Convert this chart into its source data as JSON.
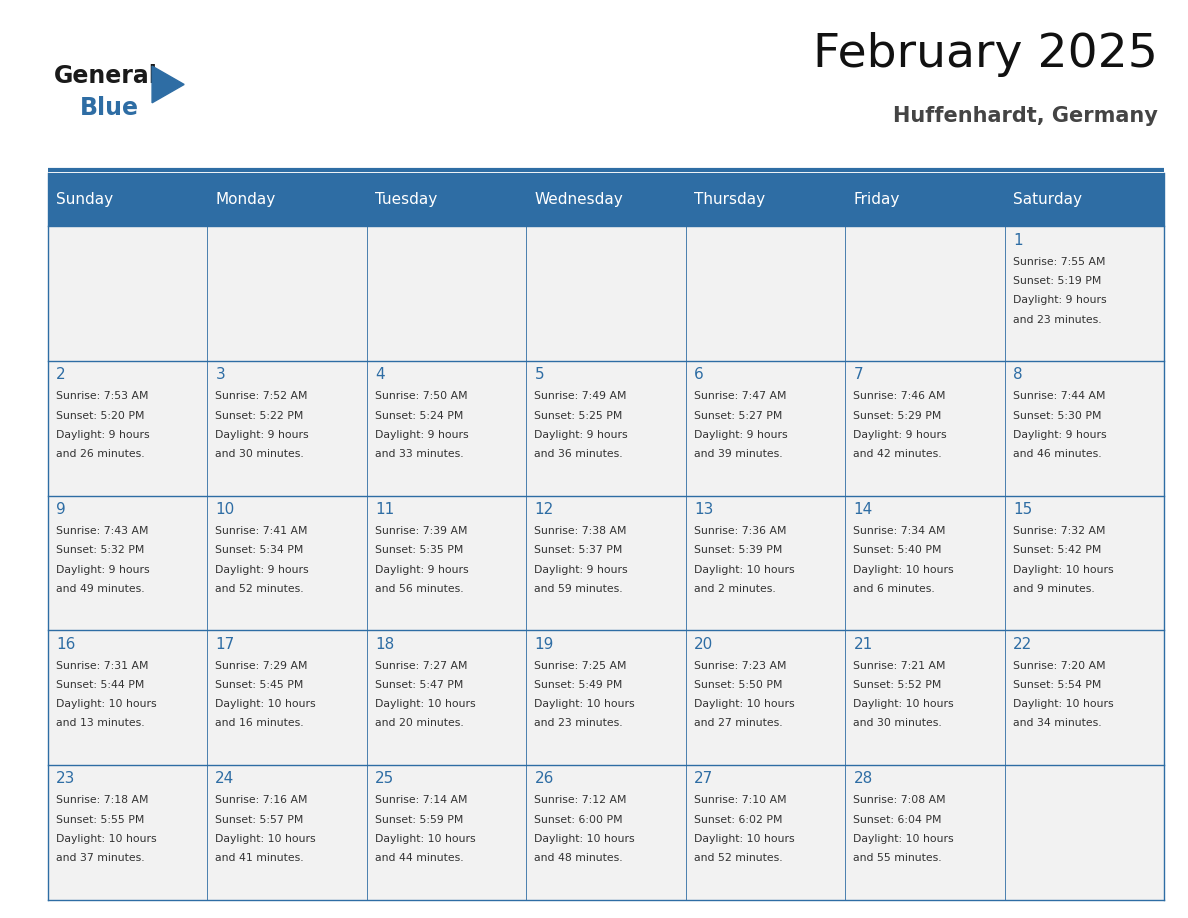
{
  "title": "February 2025",
  "subtitle": "Huffenhardt, Germany",
  "days_of_week": [
    "Sunday",
    "Monday",
    "Tuesday",
    "Wednesday",
    "Thursday",
    "Friday",
    "Saturday"
  ],
  "header_bg": "#2E6DA4",
  "header_text": "#FFFFFF",
  "cell_bg_light": "#F2F2F2",
  "border_color": "#2E6DA4",
  "text_color": "#333333",
  "day_num_color": "#2E6DA4",
  "title_color": "#111111",
  "subtitle_color": "#444444",
  "logo_general_color": "#1a1a1a",
  "logo_blue_color": "#2E6DA4",
  "calendar_data": [
    [
      {
        "day": null,
        "sunrise": null,
        "sunset": null,
        "daylight": null
      },
      {
        "day": null,
        "sunrise": null,
        "sunset": null,
        "daylight": null
      },
      {
        "day": null,
        "sunrise": null,
        "sunset": null,
        "daylight": null
      },
      {
        "day": null,
        "sunrise": null,
        "sunset": null,
        "daylight": null
      },
      {
        "day": null,
        "sunrise": null,
        "sunset": null,
        "daylight": null
      },
      {
        "day": null,
        "sunrise": null,
        "sunset": null,
        "daylight": null
      },
      {
        "day": 1,
        "sunrise": "7:55 AM",
        "sunset": "5:19 PM",
        "daylight": "9 hours\nand 23 minutes."
      }
    ],
    [
      {
        "day": 2,
        "sunrise": "7:53 AM",
        "sunset": "5:20 PM",
        "daylight": "9 hours\nand 26 minutes."
      },
      {
        "day": 3,
        "sunrise": "7:52 AM",
        "sunset": "5:22 PM",
        "daylight": "9 hours\nand 30 minutes."
      },
      {
        "day": 4,
        "sunrise": "7:50 AM",
        "sunset": "5:24 PM",
        "daylight": "9 hours\nand 33 minutes."
      },
      {
        "day": 5,
        "sunrise": "7:49 AM",
        "sunset": "5:25 PM",
        "daylight": "9 hours\nand 36 minutes."
      },
      {
        "day": 6,
        "sunrise": "7:47 AM",
        "sunset": "5:27 PM",
        "daylight": "9 hours\nand 39 minutes."
      },
      {
        "day": 7,
        "sunrise": "7:46 AM",
        "sunset": "5:29 PM",
        "daylight": "9 hours\nand 42 minutes."
      },
      {
        "day": 8,
        "sunrise": "7:44 AM",
        "sunset": "5:30 PM",
        "daylight": "9 hours\nand 46 minutes."
      }
    ],
    [
      {
        "day": 9,
        "sunrise": "7:43 AM",
        "sunset": "5:32 PM",
        "daylight": "9 hours\nand 49 minutes."
      },
      {
        "day": 10,
        "sunrise": "7:41 AM",
        "sunset": "5:34 PM",
        "daylight": "9 hours\nand 52 minutes."
      },
      {
        "day": 11,
        "sunrise": "7:39 AM",
        "sunset": "5:35 PM",
        "daylight": "9 hours\nand 56 minutes."
      },
      {
        "day": 12,
        "sunrise": "7:38 AM",
        "sunset": "5:37 PM",
        "daylight": "9 hours\nand 59 minutes."
      },
      {
        "day": 13,
        "sunrise": "7:36 AM",
        "sunset": "5:39 PM",
        "daylight": "10 hours\nand 2 minutes."
      },
      {
        "day": 14,
        "sunrise": "7:34 AM",
        "sunset": "5:40 PM",
        "daylight": "10 hours\nand 6 minutes."
      },
      {
        "day": 15,
        "sunrise": "7:32 AM",
        "sunset": "5:42 PM",
        "daylight": "10 hours\nand 9 minutes."
      }
    ],
    [
      {
        "day": 16,
        "sunrise": "7:31 AM",
        "sunset": "5:44 PM",
        "daylight": "10 hours\nand 13 minutes."
      },
      {
        "day": 17,
        "sunrise": "7:29 AM",
        "sunset": "5:45 PM",
        "daylight": "10 hours\nand 16 minutes."
      },
      {
        "day": 18,
        "sunrise": "7:27 AM",
        "sunset": "5:47 PM",
        "daylight": "10 hours\nand 20 minutes."
      },
      {
        "day": 19,
        "sunrise": "7:25 AM",
        "sunset": "5:49 PM",
        "daylight": "10 hours\nand 23 minutes."
      },
      {
        "day": 20,
        "sunrise": "7:23 AM",
        "sunset": "5:50 PM",
        "daylight": "10 hours\nand 27 minutes."
      },
      {
        "day": 21,
        "sunrise": "7:21 AM",
        "sunset": "5:52 PM",
        "daylight": "10 hours\nand 30 minutes."
      },
      {
        "day": 22,
        "sunrise": "7:20 AM",
        "sunset": "5:54 PM",
        "daylight": "10 hours\nand 34 minutes."
      }
    ],
    [
      {
        "day": 23,
        "sunrise": "7:18 AM",
        "sunset": "5:55 PM",
        "daylight": "10 hours\nand 37 minutes."
      },
      {
        "day": 24,
        "sunrise": "7:16 AM",
        "sunset": "5:57 PM",
        "daylight": "10 hours\nand 41 minutes."
      },
      {
        "day": 25,
        "sunrise": "7:14 AM",
        "sunset": "5:59 PM",
        "daylight": "10 hours\nand 44 minutes."
      },
      {
        "day": 26,
        "sunrise": "7:12 AM",
        "sunset": "6:00 PM",
        "daylight": "10 hours\nand 48 minutes."
      },
      {
        "day": 27,
        "sunrise": "7:10 AM",
        "sunset": "6:02 PM",
        "daylight": "10 hours\nand 52 minutes."
      },
      {
        "day": 28,
        "sunrise": "7:08 AM",
        "sunset": "6:04 PM",
        "daylight": "10 hours\nand 55 minutes."
      },
      {
        "day": null,
        "sunrise": null,
        "sunset": null,
        "daylight": null
      }
    ]
  ]
}
